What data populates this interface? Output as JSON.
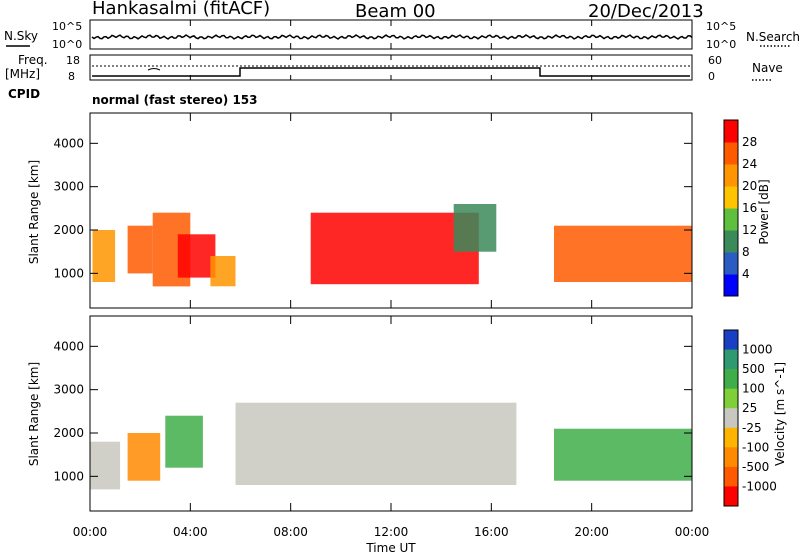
{
  "header": {
    "radar": "Hankasalmi (fitACF)",
    "beam": "Beam 00",
    "date": "20/Dec/2013"
  },
  "panels": {
    "nsky_label": "N.Sky",
    "nsearch_label": "N.Search",
    "noise_ticks_left": [
      "10^5",
      "10^0"
    ],
    "noise_ticks_right": [
      "10^5",
      "10^0"
    ],
    "freq_label_1": "Freq.",
    "freq_label_2": "[MHz]",
    "freq_ticks": [
      "18",
      "8"
    ],
    "nave_label": "Nave",
    "nave_ticks": [
      "60",
      "0"
    ],
    "cpid_label": "CPID",
    "cpid_text": "normal (fast stereo) 153"
  },
  "chart_data": [
    {
      "type": "heatmap",
      "name": "power",
      "ylabel": "Slant Range [km]",
      "yticks": [
        "1000",
        "2000",
        "3000",
        "4000"
      ],
      "ylim": [
        200,
        4700
      ],
      "colorbar": {
        "label": "Power [dB]",
        "ticks": [
          "4",
          "8",
          "12",
          "16",
          "20",
          "24",
          "28"
        ],
        "colors": [
          "#0000ff",
          "#2a5cc2",
          "#3b8a5a",
          "#5fbf3f",
          "#ffc400",
          "#ff9500",
          "#ff5a00",
          "#ff0000"
        ]
      },
      "echo_regions": [
        {
          "t": [
            0.1,
            1.0
          ],
          "r": [
            800,
            2000
          ],
          "level": 5
        },
        {
          "t": [
            1.5,
            2.5
          ],
          "r": [
            1000,
            2100
          ],
          "level": 6
        },
        {
          "t": [
            2.5,
            4.0
          ],
          "r": [
            700,
            2400
          ],
          "level": 6
        },
        {
          "t": [
            3.5,
            5.0
          ],
          "r": [
            900,
            1900
          ],
          "level": 7
        },
        {
          "t": [
            4.8,
            5.8
          ],
          "r": [
            700,
            1400
          ],
          "level": 5
        },
        {
          "t": [
            8.8,
            15.5
          ],
          "r": [
            750,
            2400
          ],
          "level": 7
        },
        {
          "t": [
            14.5,
            16.2
          ],
          "r": [
            1500,
            2600
          ],
          "level": 2
        },
        {
          "t": [
            18.5,
            24.0
          ],
          "r": [
            800,
            2100
          ],
          "level": 6
        }
      ]
    },
    {
      "type": "heatmap",
      "name": "velocity",
      "ylabel": "Slant Range [km]",
      "yticks": [
        "1000",
        "2000",
        "3000",
        "4000"
      ],
      "ylim": [
        200,
        4700
      ],
      "colorbar": {
        "label": "Velocity [m s^-1]",
        "ticks": [
          "1000",
          "500",
          "100",
          "25",
          "-25",
          "-100",
          "-500",
          "-1000"
        ],
        "colors": [
          "#1a3fc4",
          "#2f9a72",
          "#3fae4a",
          "#7fcf38",
          "#c8c8c0",
          "#ffb400",
          "#ff8a00",
          "#ff5a00",
          "#ff0000"
        ]
      },
      "echo_regions": [
        {
          "t": [
            0.0,
            1.2
          ],
          "r": [
            700,
            1800
          ],
          "v": 0
        },
        {
          "t": [
            1.5,
            2.8
          ],
          "r": [
            900,
            2000
          ],
          "v": -150
        },
        {
          "t": [
            3.0,
            4.5
          ],
          "r": [
            1200,
            2400
          ],
          "v": 150
        },
        {
          "t": [
            5.8,
            17.0
          ],
          "r": [
            800,
            2700
          ],
          "v": 0
        },
        {
          "t": [
            18.5,
            24.0
          ],
          "r": [
            900,
            2100
          ],
          "v": 300
        }
      ]
    }
  ],
  "x_axis": {
    "label": "Time UT",
    "ticks": [
      "00:00",
      "04:00",
      "08:00",
      "12:00",
      "16:00",
      "20:00",
      "00:00"
    ]
  }
}
